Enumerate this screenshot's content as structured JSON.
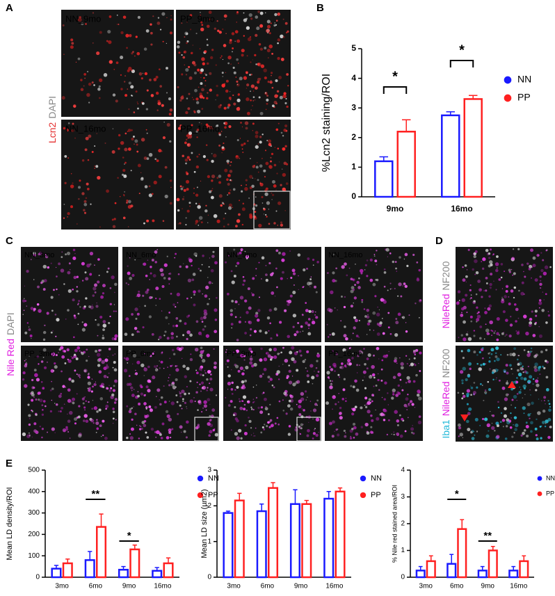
{
  "panel_labels": [
    "A",
    "B",
    "C",
    "D",
    "E"
  ],
  "panel_a": {
    "stains": [
      "Lcn2",
      "DAPI"
    ],
    "images": [
      "NN_9mo",
      "PP_9mo",
      "NN_16mo",
      "PP_16mo"
    ]
  },
  "panel_c": {
    "stains": [
      "Nile Red",
      "DAPI"
    ],
    "images": [
      "NN_3mo",
      "NN_6mo",
      "NN_9mo",
      "NN_16mo",
      "PP_3mo",
      "PP_6mo",
      "PP_9mo",
      "PP_16mo"
    ]
  },
  "panel_d": {
    "images": [
      {
        "stains": [
          "NileRed",
          "NF200"
        ]
      },
      {
        "stains": [
          "Iba1",
          "NileRed",
          "NF200"
        ]
      }
    ]
  },
  "chart_data": [
    {
      "type": "bar",
      "ylabel": "%Lcn2 staining/ROI",
      "categories": [
        "9mo",
        "16mo"
      ],
      "series": [
        {
          "name": "NN",
          "color": "#1a1aff",
          "values": [
            1.2,
            2.75
          ],
          "errors": [
            0.15,
            0.12
          ]
        },
        {
          "name": "PP",
          "color": "#ff2020",
          "values": [
            2.2,
            3.3
          ],
          "errors": [
            0.4,
            0.12
          ]
        }
      ],
      "ylim": [
        0,
        5
      ],
      "yticks": [
        0,
        1,
        2,
        3,
        4,
        5
      ],
      "annotations": [
        "*",
        "*"
      ]
    },
    {
      "type": "bar",
      "ylabel": "Mean LD density/ROI",
      "categories": [
        "3mo",
        "6mo",
        "9mo",
        "16mo"
      ],
      "series": [
        {
          "name": "NN",
          "color": "#1a1aff",
          "values": [
            40,
            80,
            35,
            30
          ],
          "errors": [
            15,
            40,
            15,
            15
          ]
        },
        {
          "name": "PP",
          "color": "#ff2020",
          "values": [
            65,
            235,
            130,
            65
          ],
          "errors": [
            20,
            60,
            20,
            25
          ]
        }
      ],
      "ylim": [
        0,
        500
      ],
      "yticks": [
        0,
        100,
        200,
        300,
        400,
        500
      ],
      "annotations": [
        "**",
        "*"
      ]
    },
    {
      "type": "bar",
      "ylabel": "Mean LD size (µm2)",
      "categories": [
        "3mo",
        "6mo",
        "9mo",
        "16mo"
      ],
      "series": [
        {
          "name": "NN",
          "color": "#1a1aff",
          "values": [
            1.8,
            1.85,
            2.05,
            2.2
          ],
          "errors": [
            0.05,
            0.2,
            0.4,
            0.2
          ]
        },
        {
          "name": "PP",
          "color": "#ff2020",
          "values": [
            2.15,
            2.5,
            2.05,
            2.4
          ],
          "errors": [
            0.2,
            0.15,
            0.1,
            0.1
          ]
        }
      ],
      "ylim": [
        0,
        3
      ],
      "yticks": [
        0,
        1,
        2,
        3
      ]
    },
    {
      "type": "bar",
      "ylabel": "% Nile red stained area/ROI",
      "categories": [
        "3mo",
        "6mo",
        "9mo",
        "16mo"
      ],
      "series": [
        {
          "name": "NN",
          "color": "#1a1aff",
          "values": [
            0.25,
            0.5,
            0.25,
            0.25
          ],
          "errors": [
            0.15,
            0.35,
            0.15,
            0.15
          ]
        },
        {
          "name": "PP",
          "color": "#ff2020",
          "values": [
            0.6,
            1.8,
            1.0,
            0.6
          ],
          "errors": [
            0.2,
            0.35,
            0.15,
            0.2
          ]
        }
      ],
      "ylim": [
        0,
        4
      ],
      "yticks": [
        0,
        1,
        2,
        3,
        4
      ],
      "annotations": [
        "*",
        "**"
      ]
    }
  ]
}
